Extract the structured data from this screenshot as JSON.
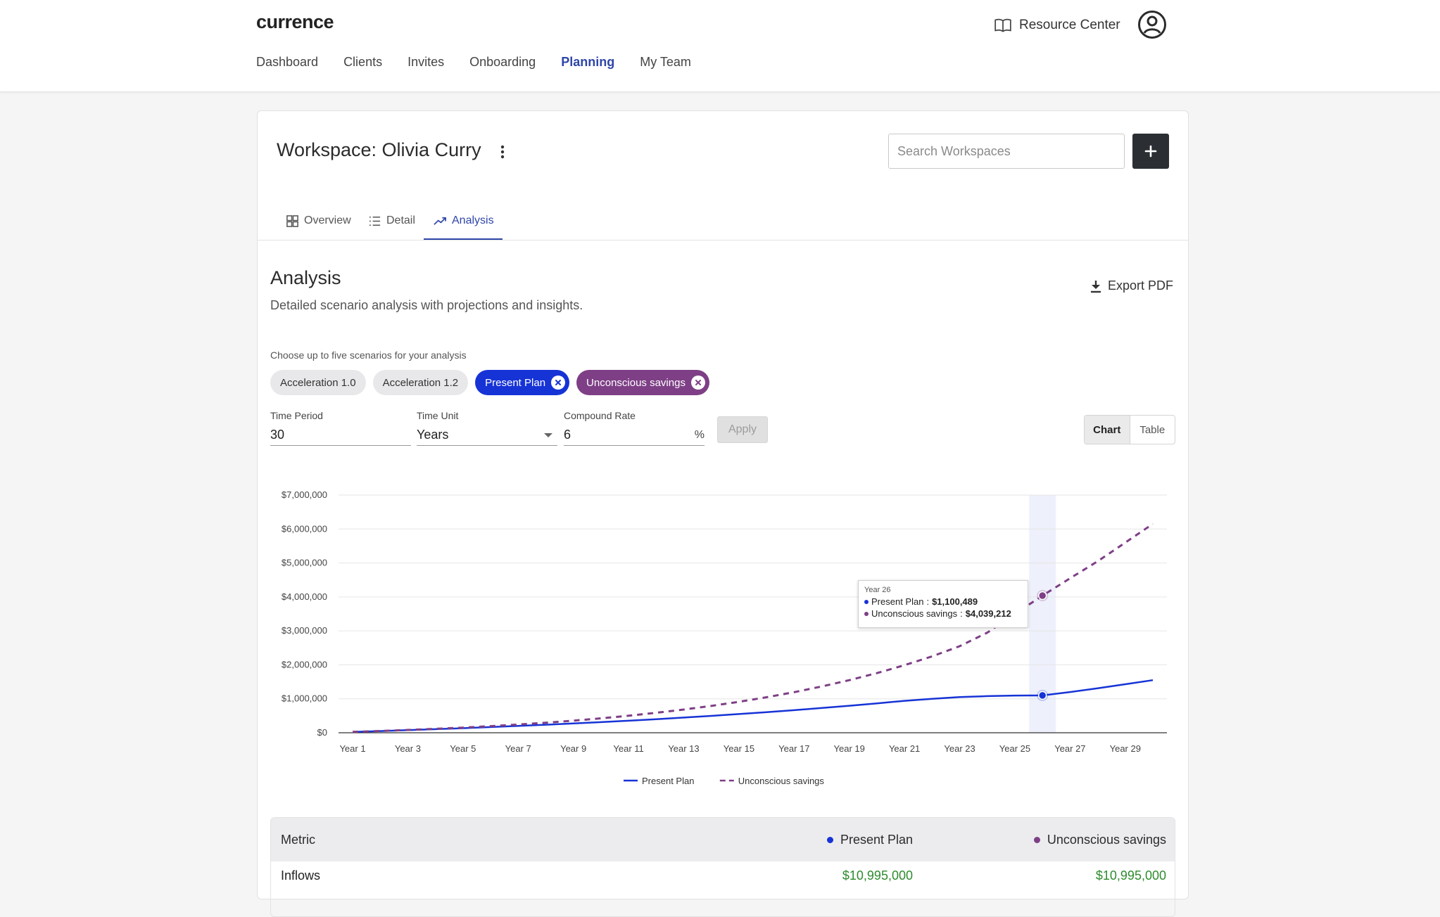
{
  "app": {
    "logo": "currence",
    "resource_center": "Resource Center",
    "nav": [
      "Dashboard",
      "Clients",
      "Invites",
      "Onboarding",
      "Planning",
      "My Team"
    ],
    "nav_active": "Planning"
  },
  "workspace": {
    "title": "Workspace: Olivia Curry",
    "search_placeholder": "Search Workspaces",
    "tabs": [
      "Overview",
      "Detail",
      "Analysis"
    ],
    "active_tab": "Analysis"
  },
  "analysis": {
    "title": "Analysis",
    "subtitle": "Detailed scenario analysis with projections and insights.",
    "export_label": "Export PDF",
    "choose_label": "Choose up to five scenarios for your analysis",
    "scenarios": [
      {
        "label": "Acceleration 1.0",
        "selected": false
      },
      {
        "label": "Acceleration 1.2",
        "selected": false
      },
      {
        "label": "Present Plan",
        "selected": true,
        "color": "#1633d6"
      },
      {
        "label": "Unconscious savings",
        "selected": true,
        "color": "#7e3f86"
      }
    ],
    "time_period_label": "Time Period",
    "time_period_value": "30",
    "time_unit_label": "Time Unit",
    "time_unit_value": "Years",
    "compound_rate_label": "Compound Rate",
    "compound_rate_value": "6",
    "compound_rate_suffix": "%",
    "apply_label": "Apply",
    "view_toggle": [
      "Chart",
      "Table"
    ],
    "view_selected": "Chart"
  },
  "chart_data": {
    "type": "line",
    "x": [
      "Year 1",
      "Year 2",
      "Year 3",
      "Year 4",
      "Year 5",
      "Year 6",
      "Year 7",
      "Year 8",
      "Year 9",
      "Year 10",
      "Year 11",
      "Year 12",
      "Year 13",
      "Year 14",
      "Year 15",
      "Year 16",
      "Year 17",
      "Year 18",
      "Year 19",
      "Year 20",
      "Year 21",
      "Year 22",
      "Year 23",
      "Year 24",
      "Year 25",
      "Year 26",
      "Year 27",
      "Year 28",
      "Year 29",
      "Year 30"
    ],
    "x_tick_labels": [
      "Year 1",
      "Year 3",
      "Year 5",
      "Year 7",
      "Year 9",
      "Year 11",
      "Year 13",
      "Year 15",
      "Year 17",
      "Year 19",
      "Year 21",
      "Year 23",
      "Year 25",
      "Year 27",
      "Year 29"
    ],
    "ylim": [
      0,
      7000000
    ],
    "y_tick_labels": [
      "$0",
      "$1,000,000",
      "$2,000,000",
      "$3,000,000",
      "$4,000,000",
      "$5,000,000",
      "$6,000,000",
      "$7,000,000"
    ],
    "grid": true,
    "legend_position": "bottom",
    "series": [
      {
        "name": "Present Plan",
        "color": "#1633d6",
        "style": "solid",
        "values": [
          24000,
          49000,
          76000,
          105000,
          135000,
          167000,
          200000,
          236000,
          273000,
          313000,
          355000,
          400000,
          447000,
          497000,
          550000,
          606000,
          665000,
          728000,
          795000,
          866000,
          941000,
          1000000,
          1050000,
          1080000,
          1095000,
          1100489,
          1200000,
          1310000,
          1430000,
          1550000
        ]
      },
      {
        "name": "Unconscious savings",
        "color": "#7e3f86",
        "style": "dashed",
        "values": [
          25000,
          52000,
          82000,
          115000,
          152000,
          195000,
          243000,
          297000,
          357000,
          425000,
          502000,
          588000,
          684000,
          792000,
          912000,
          1046000,
          1196000,
          1363000,
          1549000,
          1757000,
          1990000,
          2250000,
          2550000,
          2950000,
          3500000,
          4039212,
          4550000,
          5050000,
          5600000,
          6150000
        ]
      }
    ],
    "highlight": {
      "x": "Year 26",
      "label": "Year 26",
      "rows": [
        {
          "name": "Present Plan",
          "value": "$1,100,489",
          "color": "#1633d6"
        },
        {
          "name": "Unconscious savings",
          "value": "$4,039,212",
          "color": "#7e3f86"
        }
      ]
    }
  },
  "metrics_table": {
    "header": {
      "metric": "Metric",
      "col1": "Present Plan",
      "col2": "Unconscious savings"
    },
    "rows": [
      {
        "metric": "Inflows",
        "col1": "$10,995,000",
        "col2": "$10,995,000"
      }
    ]
  }
}
